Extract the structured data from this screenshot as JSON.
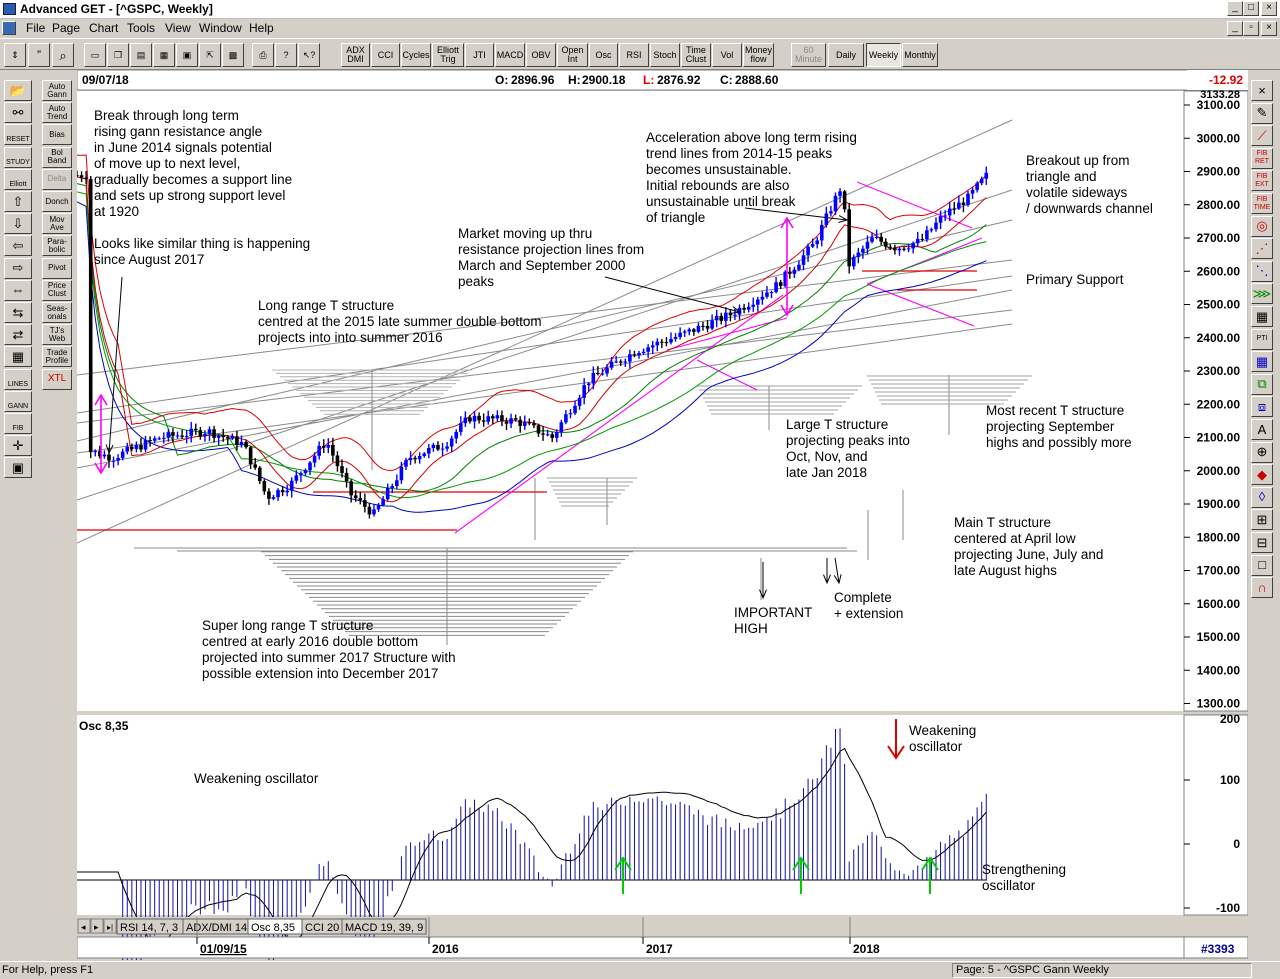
{
  "window": {
    "title": "Advanced GET - [^GSPC, Weekly]",
    "min": "_",
    "max": "□",
    "close": "×"
  },
  "menu": [
    "File",
    "Page",
    "Chart",
    "Tools",
    "View",
    "Window",
    "Help"
  ],
  "toolbar": {
    "studies": [
      {
        "label": "ADX\nDMI"
      },
      {
        "label": "CCI"
      },
      {
        "label": "Cycles"
      },
      {
        "label": "Elliott\nTrig"
      },
      {
        "label": "JTI"
      },
      {
        "label": "MACD"
      },
      {
        "label": "OBV"
      },
      {
        "label": "Open\nInt"
      },
      {
        "label": "Osc"
      },
      {
        "label": "RSI"
      },
      {
        "label": "Stoch"
      },
      {
        "label": "Time\nClust"
      },
      {
        "label": "Vol"
      },
      {
        "label": "Money\nflow"
      }
    ],
    "timeframes": [
      {
        "label": "60\nMinute",
        "state": "disabled"
      },
      {
        "label": "Daily",
        "state": "normal"
      },
      {
        "label": "Weekly",
        "state": "active"
      },
      {
        "label": "Monthly",
        "state": "normal"
      }
    ]
  },
  "sidebar": {
    "buttons": [
      {
        "label": "Auto\nGann"
      },
      {
        "label": "Auto\nTrend"
      },
      {
        "label": "Bias"
      },
      {
        "label": "Bol\nBand"
      },
      {
        "label": "Delta",
        "state": "disabled"
      },
      {
        "label": "Donch"
      },
      {
        "label": "Mov\nAve"
      },
      {
        "label": "Para-\nbolic"
      },
      {
        "label": "Pivot"
      },
      {
        "label": "Price\nClust"
      },
      {
        "label": "Seas-\nonals"
      },
      {
        "label": "TJ's\nWeb"
      },
      {
        "label": "Trade\nProfile"
      },
      {
        "label": "XTL",
        "accent": "#cc0000"
      }
    ],
    "tool_icons": [
      "open-folder-icon",
      "gann-icon",
      "reset-icon",
      "study-icon",
      "elliott-icon",
      "arrow-up-icon",
      "arrow-down-icon",
      "arrow-left-icon",
      "arrow-right-icon",
      "expand-icon",
      "compress-icon",
      "zoom-icon",
      "grid-icon",
      "lines-icon",
      "gann-fan-icon",
      "fib-icon",
      "crosshair-icon",
      "window-icon"
    ],
    "tool_labels": [
      "",
      "",
      "RESET",
      "STUDY",
      "Elliott",
      "",
      "",
      "",
      "",
      "",
      "",
      "",
      "",
      "LINES",
      "GANN",
      "FIB",
      "",
      ""
    ]
  },
  "right_tools": {
    "labels": [
      "",
      "",
      "",
      "FIB\nRET",
      "FIB\nEXT",
      "FIB\nTIME",
      "",
      "",
      "",
      "",
      "",
      "PTI",
      "",
      "",
      "",
      "",
      "",
      "",
      "",
      "",
      "",
      "",
      ""
    ]
  },
  "price_header": {
    "date": "09/07/18",
    "open_label": "O:",
    "open": "2896.96",
    "high_label": "H:",
    "high": "2900.18",
    "low_label": "L:",
    "low": "2876.92",
    "close_label": "C:",
    "close": "2888.60",
    "change": "-12.92"
  },
  "price_axis": {
    "ticks": [
      "3100.00",
      "3000.00",
      "2900.00",
      "2800.00",
      "2700.00",
      "2600.00",
      "2500.00",
      "2400.00",
      "2300.00",
      "2200.00",
      "2100.00",
      "2000.00",
      "1900.00",
      "1800.00",
      "1700.00",
      "1600.00",
      "1500.00",
      "1400.00",
      "1300.00"
    ],
    "top_value": "3133.28"
  },
  "osc_panel": {
    "title": "Osc 8,35",
    "ticks": [
      "200",
      "100",
      "0",
      "-100"
    ]
  },
  "tabs": [
    "RSI 14, 7, 3",
    "ADX/DMI 14",
    "Osc 8,35",
    "CCI 20",
    "MACD 19, 39, 9"
  ],
  "active_tab": 2,
  "time_axis": {
    "labels": [
      "01/09/15",
      "2016",
      "2017",
      "2018"
    ],
    "bar_count": "#3393"
  },
  "annotations": {
    "a1": [
      "Break through long term",
      "rising gann resistance angle",
      "in June 2014 signals potential",
      "of move up to next level,",
      "gradually becomes a support line",
      "and sets up strong support level",
      "at 1920"
    ],
    "a2": [
      "Looks like similar thing is happening",
      "since August 2017"
    ],
    "a3": [
      "Long range T structure",
      "centred at the 2015 late summer double bottom",
      "projects into into summer 2016"
    ],
    "a4": [
      "Market moving up thru",
      "resistance projection lines from",
      "March and September 2000",
      "peaks"
    ],
    "a5": [
      "Acceleration above long term rising",
      "trend lines from 2014-15 peaks",
      "becomes unsustainable.",
      "Initial rebounds are also",
      "unsustainable until break",
      "of triangle"
    ],
    "a6": [
      "Breakout up from",
      "triangle and",
      "volatile sideways",
      "/ downwards channel"
    ],
    "a7": [
      "Primary Support"
    ],
    "a8": [
      "Large T structure",
      "projecting peaks into",
      "Oct, Nov, and",
      "late Jan 2018"
    ],
    "a9": [
      "Most recent T structure",
      "projecting September",
      "highs and possibly more"
    ],
    "a10": [
      "Main T structure",
      "centered at April low",
      "projecting June, July and",
      "late August highs"
    ],
    "a11": [
      "Super long range T structure",
      "centred at early 2016 double bottom",
      "projected into summer 2017 Structure with",
      "possible extension into December 2017"
    ],
    "a12": [
      "IMPORTANT",
      "HIGH"
    ],
    "a13": [
      "Complete",
      "+ extension"
    ],
    "o1": [
      "Weakening oscillator"
    ],
    "o2": [
      "Weakening",
      "oscillator"
    ],
    "o3": [
      "Strengthening",
      "oscillator"
    ]
  },
  "status": {
    "help": "For Help, press F1",
    "page": "Page: 5 - ^GSPC Gann Weekly"
  },
  "colors": {
    "up_bar": "#0000ff",
    "down_bar": "#000000",
    "upper_band": "#e00000",
    "lower_band": "#0000c0",
    "ma": "#008000",
    "magenta": "#ff00ff",
    "green_arrow": "#00cc00"
  },
  "chart_data": {
    "type": "ohlc",
    "series": [
      {
        "name": "^GSPC",
        "approx_weekly_close": [
          [
            2014.9,
            2060
          ],
          [
            2015.0,
            2040
          ],
          [
            2015.2,
            2100
          ],
          [
            2015.4,
            2120
          ],
          [
            2015.55,
            2080
          ],
          [
            2015.65,
            1920
          ],
          [
            2015.75,
            1960
          ],
          [
            2015.9,
            2090
          ],
          [
            2016.0,
            1930
          ],
          [
            2016.1,
            1870
          ],
          [
            2016.25,
            2040
          ],
          [
            2016.4,
            2080
          ],
          [
            2016.5,
            2160
          ],
          [
            2016.7,
            2150
          ],
          [
            2016.85,
            2100
          ],
          [
            2017.0,
            2270
          ],
          [
            2017.2,
            2360
          ],
          [
            2017.4,
            2410
          ],
          [
            2017.6,
            2470
          ],
          [
            2017.8,
            2560
          ],
          [
            2017.95,
            2680
          ],
          [
            2018.07,
            2860
          ],
          [
            2018.1,
            2620
          ],
          [
            2018.2,
            2700
          ],
          [
            2018.3,
            2670
          ],
          [
            2018.4,
            2690
          ],
          [
            2018.5,
            2770
          ],
          [
            2018.6,
            2820
          ],
          [
            2018.68,
            2889
          ]
        ]
      }
    ],
    "ylim": [
      1300,
      3133.28
    ],
    "oscillator": {
      "name": "Osc 8,35",
      "ylim": [
        -150,
        220
      ]
    }
  }
}
